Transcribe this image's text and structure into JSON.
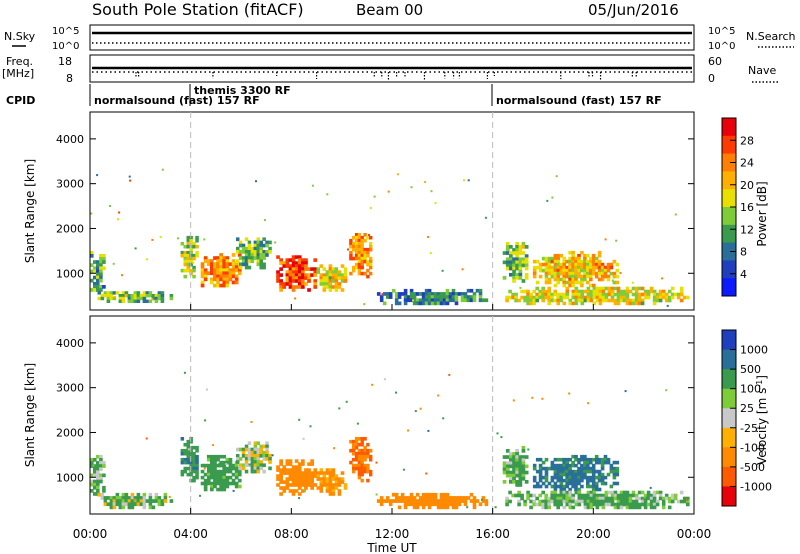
{
  "header": {
    "station": "South Pole Station (fitACF)",
    "beam": "Beam 00",
    "date": "05/Jun/2016"
  },
  "top_panels": {
    "nsky": {
      "label": "N.Sky",
      "ticks": [
        "10^5",
        "10^0"
      ],
      "right_label": "N.Search",
      "right_ticks": [
        "10^5",
        "10^0"
      ]
    },
    "freq": {
      "label_line1": "Freq.",
      "label_line2": "[MHz]",
      "ticks": [
        "18",
        "8"
      ],
      "right_label": "Nave",
      "right_ticks": [
        "60",
        "0"
      ]
    },
    "cpid": {
      "label": "CPID",
      "segments": [
        {
          "label": "normalsound (fast) 157 RF",
          "start_hour": 0
        },
        {
          "label": "themis 3300 RF",
          "start_hour": 4
        },
        {
          "label": "normalsound (fast) 157 RF",
          "start_hour": 16
        }
      ]
    }
  },
  "power_colorbar": {
    "title": "Power [dB]",
    "ticks": [
      "28",
      "24",
      "20",
      "16",
      "12",
      "8",
      "4"
    ],
    "colors": [
      "#e8000b",
      "#ff3c00",
      "#ff7f00",
      "#ffb000",
      "#e8e000",
      "#7fcc3a",
      "#3a9a4e",
      "#2a6f9a",
      "#1f3fbf",
      "#0c1aff"
    ]
  },
  "velocity_colorbar": {
    "title": "Velocity [m s",
    "title_sup": "-1",
    "title_end": "]",
    "ticks": [
      "1000",
      "500",
      "100",
      "25",
      "-25",
      "-100",
      "-500",
      "-1000"
    ],
    "colors": [
      "#1f3fbf",
      "#2a6f9a",
      "#3a9a4e",
      "#7fcc3a",
      "#c8c8c8",
      "#ffb000",
      "#ff8a00",
      "#ff5a00",
      "#e8000b"
    ]
  },
  "chart_data": [
    {
      "type": "heatmap",
      "title": "Power [dB]",
      "xlabel": "",
      "ylabel": "Slant Range [km]",
      "xlim": [
        0,
        24
      ],
      "ylim": [
        180,
        4600
      ],
      "yticks": [
        "4000",
        "3000",
        "2000",
        "1000"
      ],
      "ytick_values": [
        4000,
        3000,
        2000,
        1000
      ],
      "regions": [
        {
          "x0": 0.0,
          "x1": 0.6,
          "y0": 600,
          "y1": 1500,
          "value": 12
        },
        {
          "x0": 0.3,
          "x1": 3.4,
          "y0": 350,
          "y1": 600,
          "value": 14
        },
        {
          "x0": 3.6,
          "x1": 4.3,
          "y0": 900,
          "y1": 1900,
          "value": 16
        },
        {
          "x0": 4.4,
          "x1": 6.0,
          "y0": 700,
          "y1": 1450,
          "value": 22
        },
        {
          "x0": 5.8,
          "x1": 7.2,
          "y0": 1100,
          "y1": 1800,
          "value": 14
        },
        {
          "x0": 7.4,
          "x1": 9.0,
          "y0": 600,
          "y1": 1400,
          "value": 26
        },
        {
          "x0": 9.0,
          "x1": 10.2,
          "y0": 600,
          "y1": 1200,
          "value": 18
        },
        {
          "x0": 10.3,
          "x1": 11.2,
          "y0": 900,
          "y1": 1900,
          "value": 22
        },
        {
          "x0": 11.4,
          "x1": 15.8,
          "y0": 300,
          "y1": 650,
          "value": 10
        },
        {
          "x0": 16.4,
          "x1": 17.4,
          "y0": 800,
          "y1": 1700,
          "value": 14
        },
        {
          "x0": 17.6,
          "x1": 21.0,
          "y0": 700,
          "y1": 1500,
          "value": 20
        },
        {
          "x0": 16.5,
          "x1": 23.8,
          "y0": 300,
          "y1": 700,
          "value": 18
        }
      ]
    },
    {
      "type": "heatmap",
      "title": "Velocity [m s-1]",
      "xlabel": "Time UT",
      "ylabel": "Slant Range [km]",
      "xlim": [
        0,
        24
      ],
      "ylim": [
        180,
        4600
      ],
      "xticks": [
        "00:00",
        "04:00",
        "08:00",
        "12:00",
        "16:00",
        "20:00",
        "00:00"
      ],
      "xtick_values": [
        0,
        4,
        8,
        12,
        16,
        20,
        24
      ],
      "yticks": [
        "4000",
        "3000",
        "2000",
        "1000"
      ],
      "ytick_values": [
        4000,
        3000,
        2000,
        1000
      ],
      "regions": [
        {
          "x0": 0.0,
          "x1": 0.6,
          "y0": 600,
          "y1": 1500,
          "value": 100
        },
        {
          "x0": 0.3,
          "x1": 3.4,
          "y0": 300,
          "y1": 650,
          "value": 60
        },
        {
          "x0": 3.6,
          "x1": 4.3,
          "y0": 900,
          "y1": 1900,
          "value": 200
        },
        {
          "x0": 4.4,
          "x1": 6.0,
          "y0": 700,
          "y1": 1500,
          "value": 150
        },
        {
          "x0": 5.8,
          "x1": 7.2,
          "y0": 1100,
          "y1": 1800,
          "value": 0
        },
        {
          "x0": 7.4,
          "x1": 9.0,
          "y0": 600,
          "y1": 1400,
          "value": -300
        },
        {
          "x0": 9.0,
          "x1": 10.2,
          "y0": 600,
          "y1": 1200,
          "value": -150
        },
        {
          "x0": 10.3,
          "x1": 11.2,
          "y0": 900,
          "y1": 1900,
          "value": -400
        },
        {
          "x0": 11.4,
          "x1": 15.8,
          "y0": 300,
          "y1": 650,
          "value": -200
        },
        {
          "x0": 16.4,
          "x1": 17.4,
          "y0": 800,
          "y1": 1700,
          "value": 100
        },
        {
          "x0": 17.6,
          "x1": 21.0,
          "y0": 700,
          "y1": 1500,
          "value": 300
        },
        {
          "x0": 16.5,
          "x1": 23.8,
          "y0": 300,
          "y1": 700,
          "value": 80
        }
      ]
    }
  ]
}
